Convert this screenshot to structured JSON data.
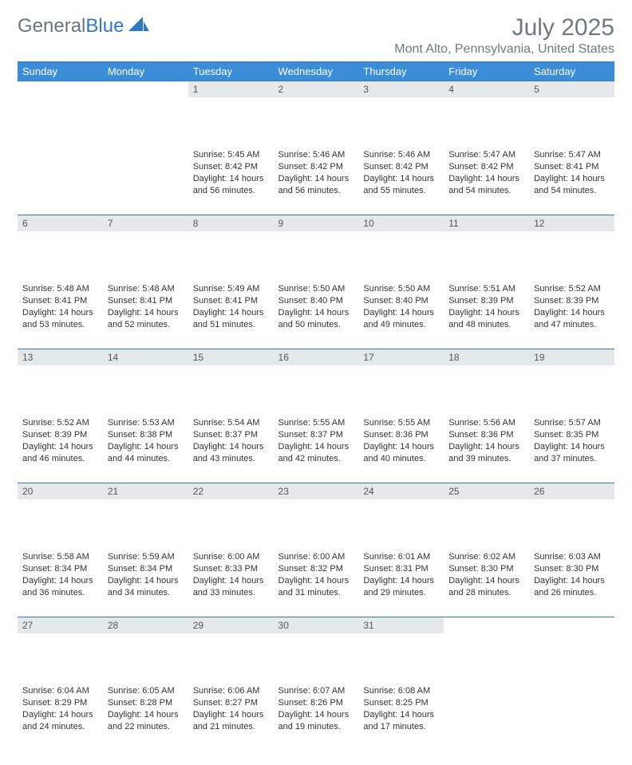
{
  "brand": {
    "part1": "General",
    "part2": "Blue"
  },
  "title": "July 2025",
  "location": "Mont Alto, Pennsylvania, United States",
  "colors": {
    "header_bg": "#3a8dd6",
    "accent": "#2e79c4",
    "daynum_bg": "#e6e9ec",
    "text_muted": "#707880"
  },
  "weekdays": [
    "Sunday",
    "Monday",
    "Tuesday",
    "Wednesday",
    "Thursday",
    "Friday",
    "Saturday"
  ],
  "weeks": [
    [
      null,
      null,
      {
        "n": "1",
        "sr": "5:45 AM",
        "ss": "8:42 PM",
        "dl": "14 hours and 56 minutes."
      },
      {
        "n": "2",
        "sr": "5:46 AM",
        "ss": "8:42 PM",
        "dl": "14 hours and 56 minutes."
      },
      {
        "n": "3",
        "sr": "5:46 AM",
        "ss": "8:42 PM",
        "dl": "14 hours and 55 minutes."
      },
      {
        "n": "4",
        "sr": "5:47 AM",
        "ss": "8:42 PM",
        "dl": "14 hours and 54 minutes."
      },
      {
        "n": "5",
        "sr": "5:47 AM",
        "ss": "8:41 PM",
        "dl": "14 hours and 54 minutes."
      }
    ],
    [
      {
        "n": "6",
        "sr": "5:48 AM",
        "ss": "8:41 PM",
        "dl": "14 hours and 53 minutes."
      },
      {
        "n": "7",
        "sr": "5:48 AM",
        "ss": "8:41 PM",
        "dl": "14 hours and 52 minutes."
      },
      {
        "n": "8",
        "sr": "5:49 AM",
        "ss": "8:41 PM",
        "dl": "14 hours and 51 minutes."
      },
      {
        "n": "9",
        "sr": "5:50 AM",
        "ss": "8:40 PM",
        "dl": "14 hours and 50 minutes."
      },
      {
        "n": "10",
        "sr": "5:50 AM",
        "ss": "8:40 PM",
        "dl": "14 hours and 49 minutes."
      },
      {
        "n": "11",
        "sr": "5:51 AM",
        "ss": "8:39 PM",
        "dl": "14 hours and 48 minutes."
      },
      {
        "n": "12",
        "sr": "5:52 AM",
        "ss": "8:39 PM",
        "dl": "14 hours and 47 minutes."
      }
    ],
    [
      {
        "n": "13",
        "sr": "5:52 AM",
        "ss": "8:39 PM",
        "dl": "14 hours and 46 minutes."
      },
      {
        "n": "14",
        "sr": "5:53 AM",
        "ss": "8:38 PM",
        "dl": "14 hours and 44 minutes."
      },
      {
        "n": "15",
        "sr": "5:54 AM",
        "ss": "8:37 PM",
        "dl": "14 hours and 43 minutes."
      },
      {
        "n": "16",
        "sr": "5:55 AM",
        "ss": "8:37 PM",
        "dl": "14 hours and 42 minutes."
      },
      {
        "n": "17",
        "sr": "5:55 AM",
        "ss": "8:36 PM",
        "dl": "14 hours and 40 minutes."
      },
      {
        "n": "18",
        "sr": "5:56 AM",
        "ss": "8:36 PM",
        "dl": "14 hours and 39 minutes."
      },
      {
        "n": "19",
        "sr": "5:57 AM",
        "ss": "8:35 PM",
        "dl": "14 hours and 37 minutes."
      }
    ],
    [
      {
        "n": "20",
        "sr": "5:58 AM",
        "ss": "8:34 PM",
        "dl": "14 hours and 36 minutes."
      },
      {
        "n": "21",
        "sr": "5:59 AM",
        "ss": "8:34 PM",
        "dl": "14 hours and 34 minutes."
      },
      {
        "n": "22",
        "sr": "6:00 AM",
        "ss": "8:33 PM",
        "dl": "14 hours and 33 minutes."
      },
      {
        "n": "23",
        "sr": "6:00 AM",
        "ss": "8:32 PM",
        "dl": "14 hours and 31 minutes."
      },
      {
        "n": "24",
        "sr": "6:01 AM",
        "ss": "8:31 PM",
        "dl": "14 hours and 29 minutes."
      },
      {
        "n": "25",
        "sr": "6:02 AM",
        "ss": "8:30 PM",
        "dl": "14 hours and 28 minutes."
      },
      {
        "n": "26",
        "sr": "6:03 AM",
        "ss": "8:30 PM",
        "dl": "14 hours and 26 minutes."
      }
    ],
    [
      {
        "n": "27",
        "sr": "6:04 AM",
        "ss": "8:29 PM",
        "dl": "14 hours and 24 minutes."
      },
      {
        "n": "28",
        "sr": "6:05 AM",
        "ss": "8:28 PM",
        "dl": "14 hours and 22 minutes."
      },
      {
        "n": "29",
        "sr": "6:06 AM",
        "ss": "8:27 PM",
        "dl": "14 hours and 21 minutes."
      },
      {
        "n": "30",
        "sr": "6:07 AM",
        "ss": "8:26 PM",
        "dl": "14 hours and 19 minutes."
      },
      {
        "n": "31",
        "sr": "6:08 AM",
        "ss": "8:25 PM",
        "dl": "14 hours and 17 minutes."
      },
      null,
      null
    ]
  ],
  "labels": {
    "sunrise": "Sunrise: ",
    "sunset": "Sunset: ",
    "daylight": "Daylight: "
  }
}
